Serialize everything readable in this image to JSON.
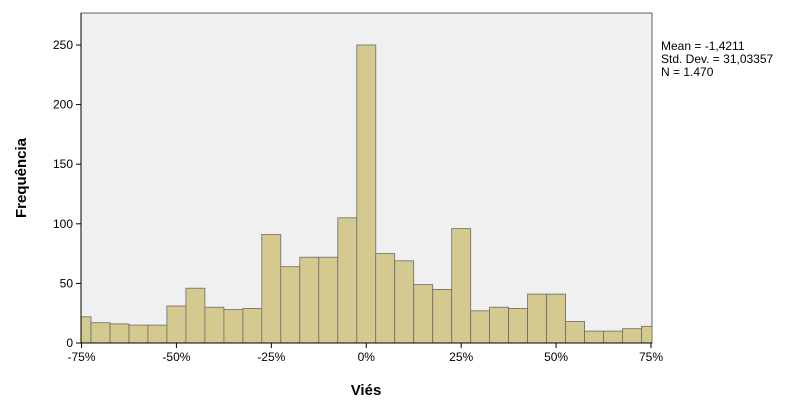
{
  "chart_data": {
    "type": "bar",
    "title": "",
    "xlabel": "Viés",
    "ylabel": "Frequência",
    "xlim": [
      -75,
      75
    ],
    "ylim": [
      0,
      270
    ],
    "bin_width": 5,
    "x_ticks": [
      -75,
      -50,
      -25,
      0,
      25,
      50,
      75
    ],
    "x_tick_labels": [
      "-75%",
      "-50%",
      "-25%",
      "0%",
      "25%",
      "50%",
      "75%"
    ],
    "y_ticks": [
      0,
      50,
      100,
      150,
      200,
      250
    ],
    "y_tick_labels": [
      "0",
      "50",
      "100",
      "150",
      "200",
      "250"
    ],
    "bins": [
      {
        "start": -77.5,
        "value": 22
      },
      {
        "start": -72.5,
        "value": 17
      },
      {
        "start": -67.5,
        "value": 16
      },
      {
        "start": -62.5,
        "value": 15
      },
      {
        "start": -57.5,
        "value": 15
      },
      {
        "start": -52.5,
        "value": 31
      },
      {
        "start": -47.5,
        "value": 46
      },
      {
        "start": -42.5,
        "value": 30
      },
      {
        "start": -37.5,
        "value": 28
      },
      {
        "start": -32.5,
        "value": 29
      },
      {
        "start": -27.5,
        "value": 91
      },
      {
        "start": -22.5,
        "value": 64
      },
      {
        "start": -17.5,
        "value": 72
      },
      {
        "start": -12.5,
        "value": 72
      },
      {
        "start": -7.5,
        "value": 105
      },
      {
        "start": -2.5,
        "value": 250
      },
      {
        "start": 2.5,
        "value": 75
      },
      {
        "start": 7.5,
        "value": 69
      },
      {
        "start": 12.5,
        "value": 49
      },
      {
        "start": 17.5,
        "value": 45
      },
      {
        "start": 22.5,
        "value": 96
      },
      {
        "start": 27.5,
        "value": 27
      },
      {
        "start": 32.5,
        "value": 30
      },
      {
        "start": 37.5,
        "value": 29
      },
      {
        "start": 42.5,
        "value": 41
      },
      {
        "start": 47.5,
        "value": 41
      },
      {
        "start": 52.5,
        "value": 18
      },
      {
        "start": 57.5,
        "value": 10
      },
      {
        "start": 62.5,
        "value": 10
      },
      {
        "start": 67.5,
        "value": 12
      },
      {
        "start": 72.5,
        "value": 14
      }
    ],
    "grid": false,
    "colors": {
      "bar_fill": "#D4C98F",
      "bar_stroke": "#6B6B6B",
      "plot_background": "#F0F0F0",
      "axis": "#000000"
    }
  },
  "stats": {
    "mean": "Mean = -1,4211",
    "std_dev": "Std. Dev. = 31,03357",
    "n": "N = 1.470"
  }
}
